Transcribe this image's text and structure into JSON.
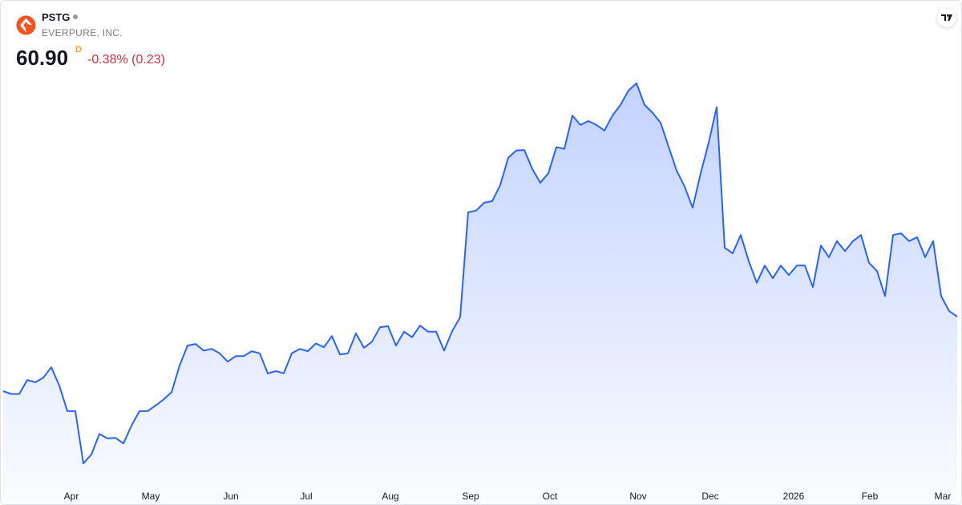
{
  "header": {
    "symbol": "PSTG",
    "company": "EVERPURE, INC.",
    "price": "60.90",
    "interval": "D",
    "change": "-0.38% (0.23)"
  },
  "chart_data": {
    "type": "area",
    "series": [
      {
        "name": "PSTG",
        "color": "#2962ff",
        "values": [
          47.5,
          47.0,
          47.0,
          49.5,
          49.1,
          49.9,
          51.8,
          48.5,
          43.9,
          43.9,
          34.5,
          36.1,
          39.8,
          39.0,
          39.1,
          38.1,
          41.3,
          43.9,
          43.9,
          44.9,
          46.0,
          47.3,
          52.1,
          55.7,
          56.0,
          54.8,
          55.1,
          54.3,
          52.8,
          53.8,
          53.8,
          54.7,
          54.3,
          50.7,
          51.1,
          50.7,
          54.3,
          55.1,
          54.7,
          56.1,
          55.4,
          57.4,
          54.1,
          54.3,
          57.9,
          55.3,
          56.4,
          59.0,
          59.2,
          55.7,
          58.2,
          57.2,
          59.3,
          58.2,
          58.2,
          54.8,
          58.3,
          60.8,
          79.7,
          80.0,
          81.4,
          81.7,
          84.6,
          89.5,
          90.8,
          90.9,
          87.5,
          85.0,
          86.7,
          91.4,
          91.1,
          97.1,
          95.4,
          96.1,
          95.4,
          94.4,
          97.1,
          99.0,
          101.6,
          102.9,
          99.0,
          97.6,
          95.8,
          91.5,
          87.2,
          84.3,
          80.5,
          86.7,
          92.2,
          98.6,
          73.3,
          72.3,
          75.6,
          70.9,
          67.0,
          70.1,
          67.8,
          70.1,
          68.4,
          70.1,
          70.1,
          66.2,
          73.7,
          71.6,
          74.5,
          72.7,
          74.5,
          75.6,
          70.6,
          69.1,
          64.6,
          75.6,
          75.9,
          74.5,
          75.2,
          71.6,
          74.5,
          64.6,
          61.9,
          60.9
        ]
      }
    ],
    "xlim": [
      0,
      119
    ],
    "ylim": [
      31.2,
      106.2
    ],
    "xticks": [
      {
        "value": 8.5,
        "label": "Apr"
      },
      {
        "value": 18.4,
        "label": "May"
      },
      {
        "value": 28.4,
        "label": "Jun"
      },
      {
        "value": 37.8,
        "label": "Jul"
      },
      {
        "value": 48.3,
        "label": "Aug"
      },
      {
        "value": 58.3,
        "label": "Sep"
      },
      {
        "value": 68.2,
        "label": "Oct"
      },
      {
        "value": 79.2,
        "label": "Nov"
      },
      {
        "value": 88.2,
        "label": "Dec"
      },
      {
        "value": 98.6,
        "label": "2026"
      },
      {
        "value": 108.1,
        "label": "Feb"
      },
      {
        "value": 117.2,
        "label": "Mar"
      }
    ],
    "grid": false
  }
}
